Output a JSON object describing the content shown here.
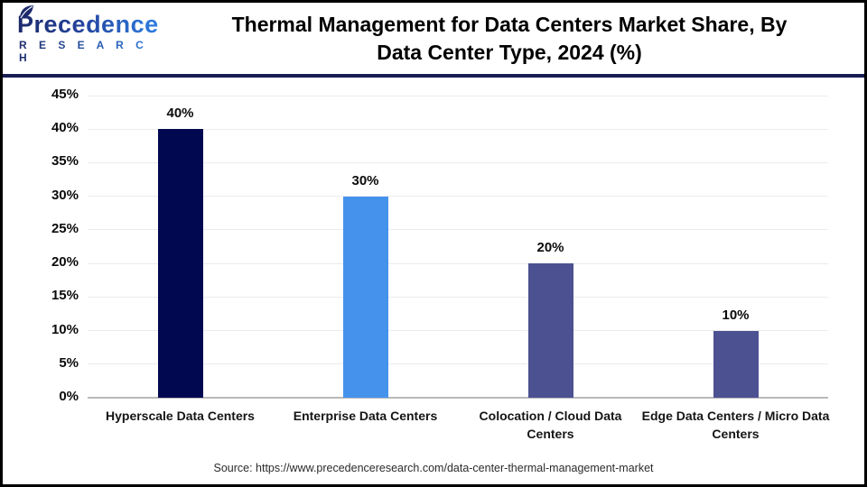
{
  "header": {
    "logo": {
      "brand": "Precedence",
      "sub": "R E S E A R C H"
    },
    "title_line1": "Thermal Management for Data Centers Market Share, By",
    "title_line2": "Data Center Type, 2024 (%)"
  },
  "chart_data": {
    "type": "bar",
    "title": "Thermal Management for Data Centers Market Share, By Data Center Type, 2024 (%)",
    "categories": [
      "Hyperscale Data Centers",
      "Enterprise Data Centers",
      "Colocation / Cloud Data Centers",
      "Edge Data Centers / Micro Data Centers"
    ],
    "values": [
      40,
      30,
      20,
      10
    ],
    "value_labels": [
      "40%",
      "30%",
      "20%",
      "10%"
    ],
    "bar_colors": [
      "#010850",
      "#4592ec",
      "#4c5191",
      "#4c5191"
    ],
    "xlabel": "",
    "ylabel": "",
    "ylim": [
      0,
      45
    ],
    "ytick_step": 5,
    "ytick_labels": [
      "0%",
      "5%",
      "10%",
      "15%",
      "20%",
      "25%",
      "30%",
      "35%",
      "40%",
      "45%"
    ],
    "grid": "horizontal",
    "legend": "none"
  },
  "footer": {
    "source": "Source: https://www.precedenceresearch.com/data-center-thermal-management-market"
  },
  "colors": {
    "divider": "#181d52",
    "grid": "#ebebf0",
    "axis": "#b9b9b9",
    "title": "#000000"
  }
}
